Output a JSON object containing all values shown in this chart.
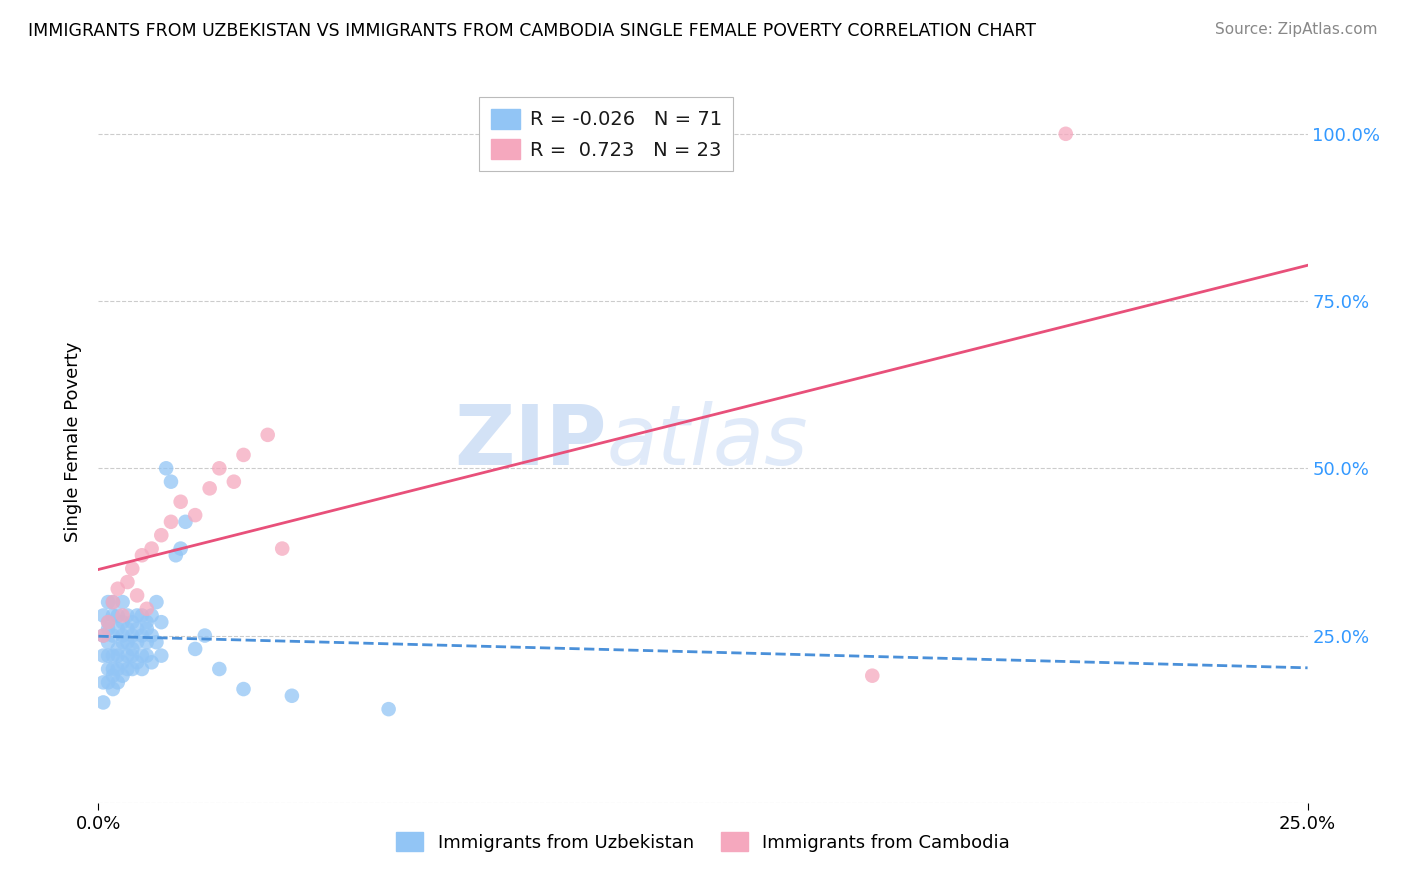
{
  "title": "IMMIGRANTS FROM UZBEKISTAN VS IMMIGRANTS FROM CAMBODIA SINGLE FEMALE POVERTY CORRELATION CHART",
  "source": "Source: ZipAtlas.com",
  "ylabel": "Single Female Poverty",
  "y_ticks": [
    0.0,
    0.25,
    0.5,
    0.75,
    1.0
  ],
  "y_tick_labels": [
    "",
    "25.0%",
    "50.0%",
    "75.0%",
    "100.0%"
  ],
  "x_range": [
    0.0,
    0.25
  ],
  "y_range": [
    0.0,
    1.08
  ],
  "legend_R1": "-0.026",
  "legend_N1": "71",
  "legend_R2": "0.723",
  "legend_N2": "23",
  "color_uzbekistan": "#92c5f5",
  "color_cambodia": "#f5a8be",
  "line_color_uzbekistan": "#4a90d9",
  "line_color_cambodia": "#e8507a",
  "watermark_color": "#ccddf5",
  "uzbekistan_x": [
    0.001,
    0.001,
    0.001,
    0.001,
    0.001,
    0.002,
    0.002,
    0.002,
    0.002,
    0.002,
    0.002,
    0.002,
    0.003,
    0.003,
    0.003,
    0.003,
    0.003,
    0.003,
    0.003,
    0.004,
    0.004,
    0.004,
    0.004,
    0.004,
    0.004,
    0.005,
    0.005,
    0.005,
    0.005,
    0.005,
    0.005,
    0.006,
    0.006,
    0.006,
    0.006,
    0.006,
    0.007,
    0.007,
    0.007,
    0.007,
    0.007,
    0.008,
    0.008,
    0.008,
    0.008,
    0.009,
    0.009,
    0.009,
    0.009,
    0.01,
    0.01,
    0.01,
    0.01,
    0.011,
    0.011,
    0.011,
    0.012,
    0.012,
    0.013,
    0.013,
    0.014,
    0.015,
    0.016,
    0.017,
    0.018,
    0.02,
    0.022,
    0.025,
    0.03,
    0.04,
    0.06
  ],
  "uzbekistan_y": [
    0.18,
    0.22,
    0.25,
    0.28,
    0.15,
    0.2,
    0.24,
    0.27,
    0.3,
    0.22,
    0.18,
    0.26,
    0.2,
    0.25,
    0.28,
    0.22,
    0.19,
    0.3,
    0.17,
    0.23,
    0.26,
    0.2,
    0.28,
    0.22,
    0.18,
    0.25,
    0.21,
    0.27,
    0.24,
    0.19,
    0.3,
    0.22,
    0.26,
    0.2,
    0.28,
    0.24,
    0.25,
    0.22,
    0.27,
    0.2,
    0.23,
    0.26,
    0.21,
    0.28,
    0.24,
    0.25,
    0.22,
    0.28,
    0.2,
    0.24,
    0.27,
    0.22,
    0.26,
    0.25,
    0.21,
    0.28,
    0.3,
    0.24,
    0.27,
    0.22,
    0.5,
    0.48,
    0.37,
    0.38,
    0.42,
    0.23,
    0.25,
    0.2,
    0.17,
    0.16,
    0.14
  ],
  "cambodia_x": [
    0.001,
    0.002,
    0.003,
    0.004,
    0.005,
    0.006,
    0.007,
    0.008,
    0.009,
    0.01,
    0.011,
    0.013,
    0.015,
    0.017,
    0.02,
    0.023,
    0.025,
    0.028,
    0.03,
    0.035,
    0.038,
    0.16,
    0.2
  ],
  "cambodia_y": [
    0.25,
    0.27,
    0.3,
    0.32,
    0.28,
    0.33,
    0.35,
    0.31,
    0.37,
    0.29,
    0.38,
    0.4,
    0.42,
    0.45,
    0.43,
    0.47,
    0.5,
    0.48,
    0.52,
    0.55,
    0.38,
    0.19,
    1.0
  ]
}
